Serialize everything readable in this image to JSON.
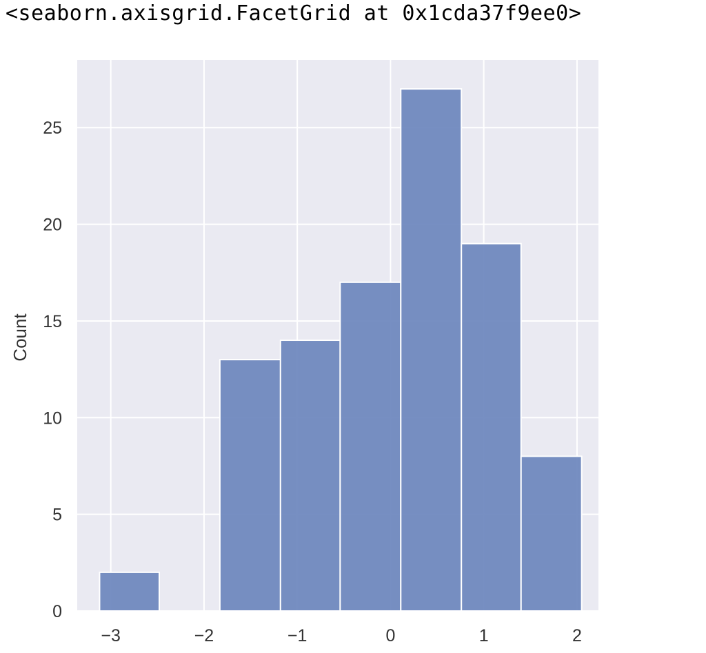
{
  "output_text": "<seaborn.axisgrid.FacetGrid at 0x1cda37f9ee0>",
  "chart_data": {
    "type": "bar",
    "title": "",
    "xlabel": "",
    "ylabel": "Count",
    "bin_edges": [
      -3.12,
      -2.48,
      -1.83,
      -1.18,
      -0.54,
      0.11,
      0.76,
      1.4,
      2.05
    ],
    "values": [
      2,
      0,
      13,
      14,
      17,
      27,
      19,
      8
    ],
    "xlim": [
      -3.36,
      2.23
    ],
    "ylim": [
      0,
      28.5
    ],
    "xticks": [
      -3,
      -2,
      -1,
      0,
      1,
      2
    ],
    "xtick_labels": [
      "−3",
      "−2",
      "−1",
      "0",
      "1",
      "2"
    ],
    "yticks": [
      0,
      5,
      10,
      15,
      20,
      25
    ],
    "ytick_labels": [
      "0",
      "5",
      "10",
      "15",
      "20",
      "25"
    ],
    "grid": true,
    "colors": {
      "background": "#eaeaf2",
      "grid": "#ffffff",
      "bar": "#6b86bd"
    }
  }
}
